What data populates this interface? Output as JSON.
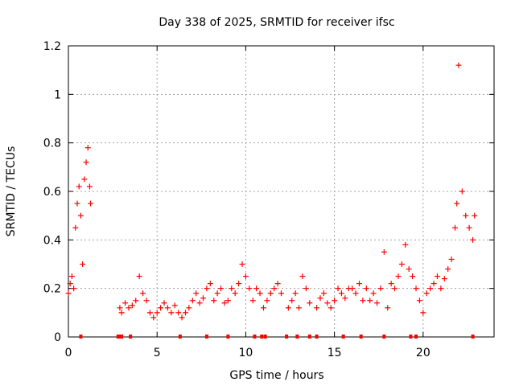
{
  "chart_data": {
    "type": "scatter",
    "title": "Day 338 of 2025, SRMTID for receiver ifsc",
    "xlabel": "GPS time / hours",
    "ylabel": "SRMTID / TECUs",
    "xlim": [
      0,
      24
    ],
    "ylim": [
      0,
      1.2
    ],
    "xticks": [
      0,
      5,
      10,
      15,
      20
    ],
    "xtick_labels": [
      "0",
      "5",
      "10",
      "15",
      "20"
    ],
    "yticks": [
      0,
      0.2,
      0.4,
      0.6,
      0.8,
      1,
      1.2
    ],
    "ytick_labels": [
      "0",
      "0.2",
      "0.4",
      "0.6",
      "0.8",
      "1",
      "1.2"
    ],
    "grid": true,
    "marker": "plus",
    "color": "#ff0000",
    "series": [
      {
        "name": "SRMTID",
        "x": [
          0.0,
          0.1,
          0.2,
          0.3,
          0.4,
          0.5,
          0.6,
          0.7,
          0.8,
          0.9,
          1.0,
          1.1,
          1.2,
          1.25,
          2.9,
          3.0,
          3.2,
          3.4,
          3.6,
          3.8,
          4.0,
          4.2,
          4.4,
          4.6,
          4.8,
          5.0,
          5.2,
          5.4,
          5.6,
          5.8,
          6.0,
          6.2,
          6.4,
          6.6,
          6.8,
          7.0,
          7.2,
          7.4,
          7.6,
          7.8,
          8.0,
          8.2,
          8.4,
          8.6,
          8.8,
          9.0,
          9.2,
          9.4,
          9.6,
          9.8,
          10.0,
          10.2,
          10.4,
          10.6,
          10.8,
          11.0,
          11.2,
          11.4,
          11.6,
          11.8,
          12.0,
          12.4,
          12.6,
          12.8,
          13.0,
          13.2,
          13.4,
          13.6,
          14.0,
          14.2,
          14.4,
          14.6,
          14.8,
          15.0,
          15.2,
          15.4,
          15.6,
          15.8,
          16.0,
          16.2,
          16.4,
          16.6,
          16.8,
          17.0,
          17.2,
          17.4,
          17.6,
          17.8,
          18.0,
          18.2,
          18.4,
          18.6,
          18.8,
          19.0,
          19.2,
          19.4,
          19.6,
          19.8,
          20.0,
          20.2,
          20.4,
          20.6,
          20.8,
          21.0,
          21.2,
          21.4,
          21.6,
          21.8,
          21.9,
          22.0,
          22.2,
          22.4,
          22.6,
          22.8,
          22.9
        ],
        "y": [
          0.18,
          0.22,
          0.25,
          0.2,
          0.45,
          0.55,
          0.62,
          0.5,
          0.3,
          0.65,
          0.72,
          0.78,
          0.62,
          0.55,
          0.12,
          0.1,
          0.14,
          0.12,
          0.13,
          0.15,
          0.25,
          0.18,
          0.15,
          0.1,
          0.08,
          0.1,
          0.12,
          0.14,
          0.12,
          0.1,
          0.13,
          0.1,
          0.08,
          0.1,
          0.12,
          0.15,
          0.18,
          0.14,
          0.16,
          0.2,
          0.22,
          0.15,
          0.18,
          0.2,
          0.14,
          0.15,
          0.2,
          0.18,
          0.22,
          0.3,
          0.25,
          0.2,
          0.15,
          0.2,
          0.18,
          0.12,
          0.15,
          0.18,
          0.2,
          0.22,
          0.18,
          0.12,
          0.15,
          0.18,
          0.12,
          0.25,
          0.2,
          0.14,
          0.12,
          0.16,
          0.18,
          0.14,
          0.12,
          0.15,
          0.2,
          0.18,
          0.16,
          0.2,
          0.2,
          0.18,
          0.22,
          0.15,
          0.2,
          0.15,
          0.18,
          0.14,
          0.2,
          0.35,
          0.12,
          0.22,
          0.2,
          0.25,
          0.3,
          0.38,
          0.28,
          0.25,
          0.2,
          0.15,
          0.1,
          0.18,
          0.2,
          0.22,
          0.25,
          0.2,
          0.24,
          0.28,
          0.32,
          0.45,
          0.55,
          1.12,
          0.6,
          0.5,
          0.45,
          0.4,
          0.5
        ],
        "zero_markers_x": [
          0.7,
          2.8,
          2.9,
          3.0,
          3.5,
          6.3,
          7.8,
          9.0,
          10.5,
          10.9,
          11.1,
          12.3,
          12.9,
          13.6,
          14.0,
          15.5,
          16.5,
          17.8,
          19.3,
          19.6,
          22.8
        ]
      }
    ]
  }
}
